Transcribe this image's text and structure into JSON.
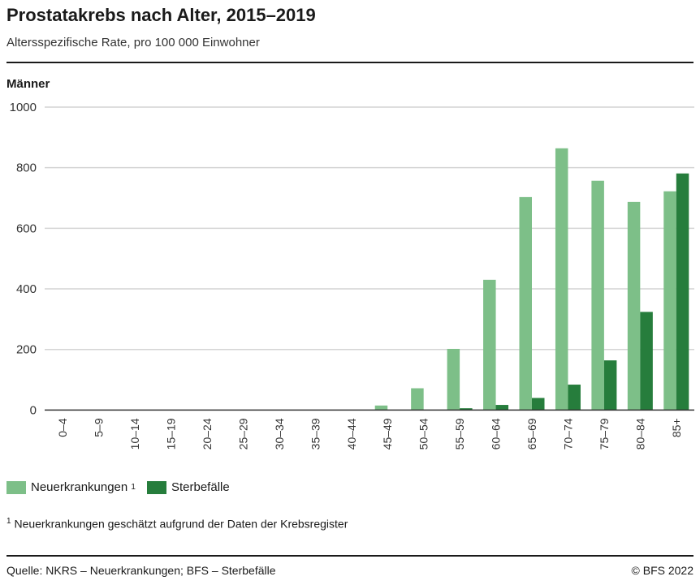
{
  "title": "Prostatakrebs nach Alter, 2015–2019",
  "subtitle": "Altersspezifische Rate, pro 100 000 Einwohner",
  "panel_label": "Männer",
  "footnote": {
    "mark": "1",
    "text": "Neuerkrankungen geschätzt aufgrund der Daten der Krebsregister"
  },
  "source": "Quelle: NKRS – Neuerkrankungen; BFS – Sterbefälle",
  "copyright": "© BFS 2022",
  "legend": [
    {
      "label": "Neuerkrankungen",
      "mark": "1",
      "color": "#7dbf88"
    },
    {
      "label": "Sterbefälle",
      "color": "#267d3c"
    }
  ],
  "chart_data": {
    "type": "bar",
    "categories": [
      "0–4",
      "5–9",
      "10–14",
      "15–19",
      "20–24",
      "25–29",
      "30–34",
      "35–39",
      "40–44",
      "45–49",
      "50–54",
      "55–59",
      "60–64",
      "65–69",
      "70–74",
      "75–79",
      "80–84",
      "85+"
    ],
    "series": [
      {
        "name": "Neuerkrankungen",
        "color": "#7dbf88",
        "values": [
          0,
          0,
          0,
          0,
          0,
          0,
          0,
          0,
          0,
          15,
          72,
          202,
          430,
          703,
          864,
          757,
          687,
          722
        ]
      },
      {
        "name": "Sterbefälle",
        "color": "#267d3c",
        "values": [
          0,
          0,
          0,
          0,
          0,
          0,
          0,
          0,
          0,
          0,
          0,
          6,
          17,
          40,
          84,
          164,
          324,
          781
        ]
      }
    ],
    "ylim": [
      0,
      1000
    ],
    "yticks": [
      "0",
      "200",
      "400",
      "600",
      "800",
      "1000"
    ],
    "grid": true,
    "legend_position": "bottom-left"
  }
}
